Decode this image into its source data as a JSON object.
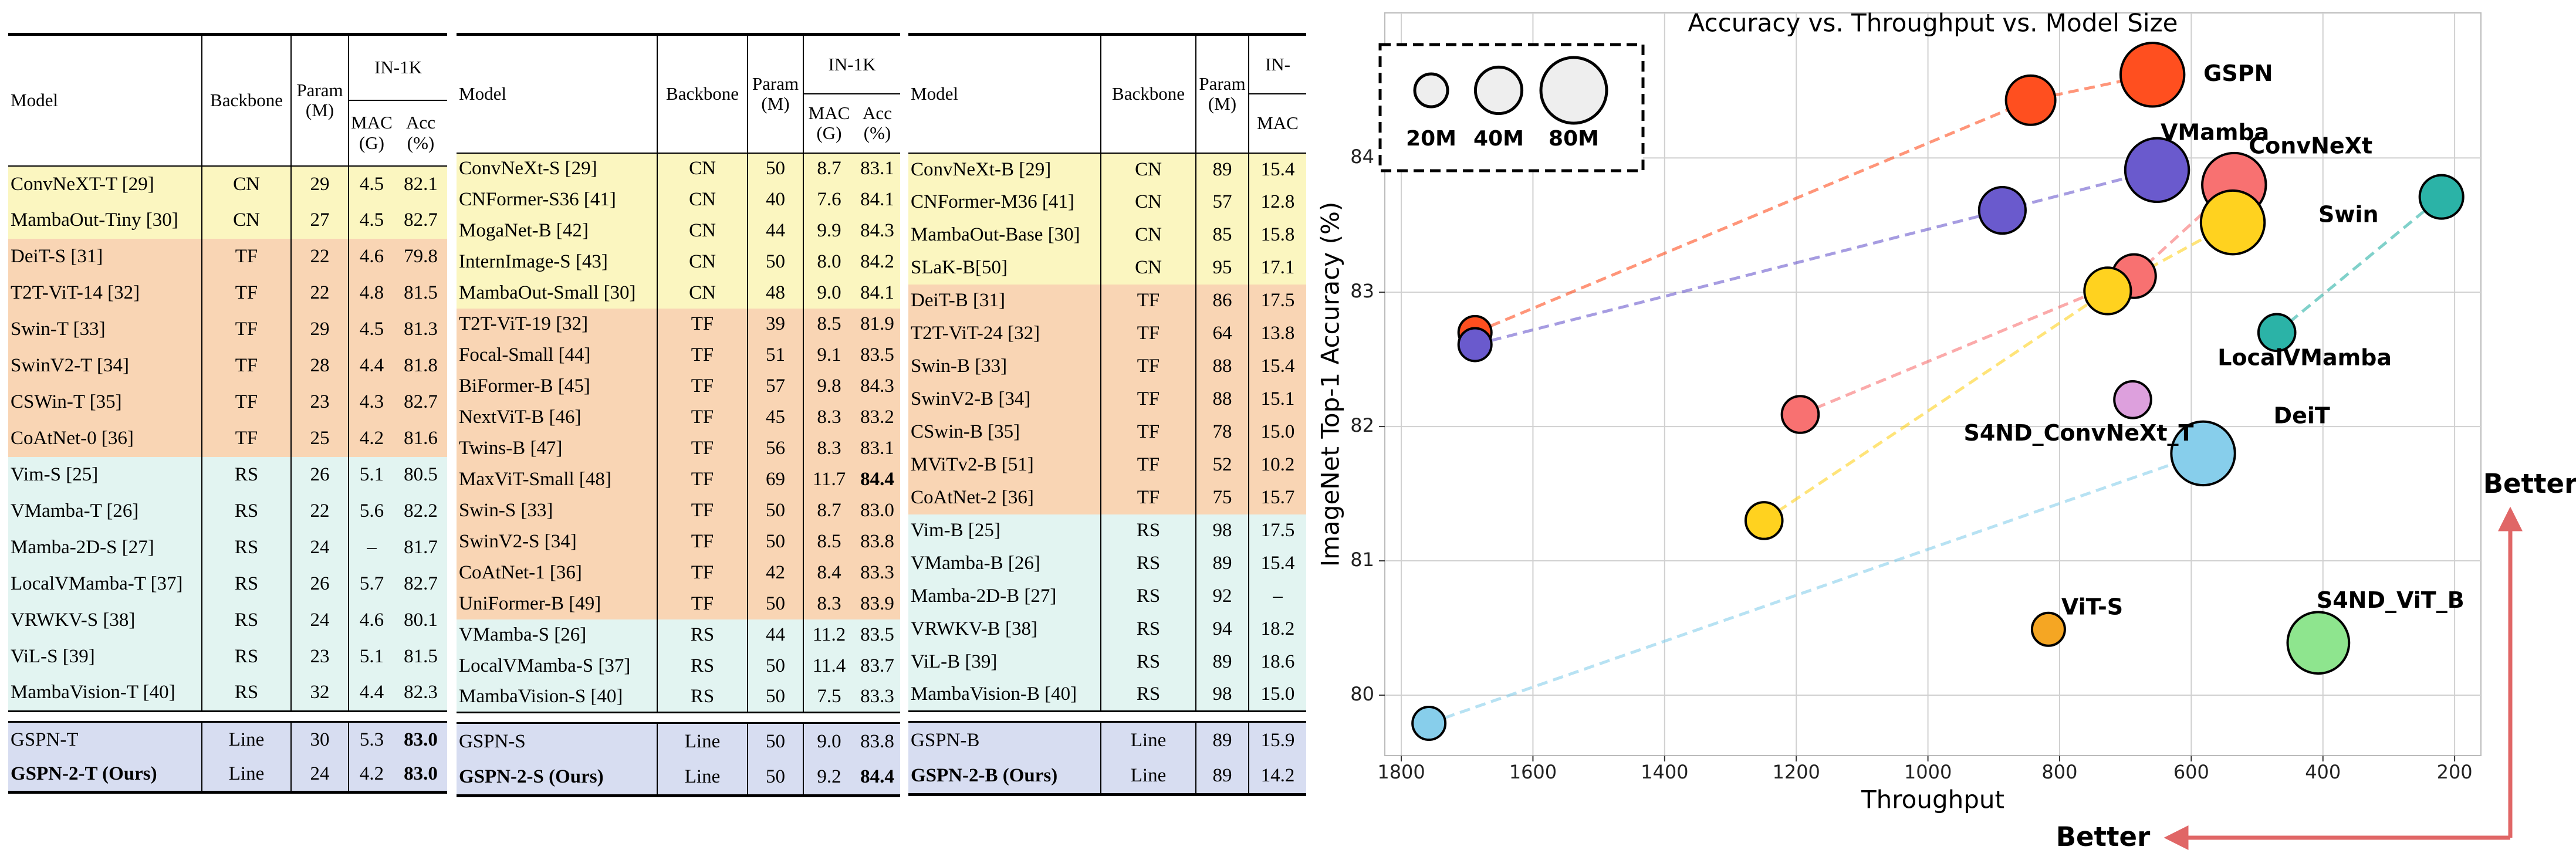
{
  "tables": [
    {
      "columns": [
        "Model",
        "Backbone",
        "Param (M)"
      ],
      "group_header": "IN-1K",
      "sub_columns": [
        "MAC (G)",
        "Acc (%)"
      ],
      "groups": [
        {
          "color": "#fbf6c0",
          "rows": [
            [
              "ConvNeXT-T [29]",
              "CN",
              "29",
              "4.5",
              "82.1"
            ],
            [
              "MambaOut-Tiny [30]",
              "CN",
              "27",
              "4.5",
              "82.7"
            ]
          ]
        },
        {
          "color": "#f9d5b4",
          "rows": [
            [
              "DeiT-S [31]",
              "TF",
              "22",
              "4.6",
              "79.8"
            ],
            [
              "T2T-ViT-14 [32]",
              "TF",
              "22",
              "4.8",
              "81.5"
            ],
            [
              "Swin-T [33]",
              "TF",
              "29",
              "4.5",
              "81.3"
            ],
            [
              "SwinV2-T [34]",
              "TF",
              "28",
              "4.4",
              "81.8"
            ],
            [
              "CSWin-T [35]",
              "TF",
              "23",
              "4.3",
              "82.7"
            ],
            [
              "CoAtNet-0 [36]",
              "TF",
              "25",
              "4.2",
              "81.6"
            ]
          ]
        },
        {
          "color": "#e2f4f1",
          "rows": [
            [
              "Vim-S [25]",
              "RS",
              "26",
              "5.1",
              "80.5"
            ],
            [
              "VMamba-T [26]",
              "RS",
              "22",
              "5.6",
              "82.2"
            ],
            [
              "Mamba-2D-S [27]",
              "RS",
              "24",
              "–",
              "81.7"
            ],
            [
              "LocalVMamba-T [37]",
              "RS",
              "26",
              "5.7",
              "82.7"
            ],
            [
              "VRWKV-S [38]",
              "RS",
              "24",
              "4.6",
              "80.1"
            ],
            [
              "ViL-S [39]",
              "RS",
              "23",
              "5.1",
              "81.5"
            ],
            [
              "MambaVision-T [40]",
              "RS",
              "32",
              "4.4",
              "82.3"
            ]
          ]
        },
        {
          "color": "#d7ddf1",
          "rows": [
            [
              "GSPN-T",
              "Line",
              "30",
              "5.3",
              "83.0"
            ],
            [
              "GSPN-2-T (Ours)",
              "Line",
              "24",
              "4.2",
              "83.0"
            ]
          ],
          "bold": [
            [
              0,
              4
            ],
            [
              1,
              0
            ],
            [
              1,
              4
            ]
          ]
        }
      ]
    },
    {
      "columns": [
        "Model",
        "Backbone",
        "Param (M)"
      ],
      "group_header": "IN-1K",
      "sub_columns": [
        "MAC (G)",
        "Acc (%)"
      ],
      "groups": [
        {
          "color": "#fbf6c0",
          "rows": [
            [
              "ConvNeXt-S [29]",
              "CN",
              "50",
              "8.7",
              "83.1"
            ],
            [
              "CNFormer-S36 [41]",
              "CN",
              "40",
              "7.6",
              "84.1"
            ],
            [
              "MogaNet-B [42]",
              "CN",
              "44",
              "9.9",
              "84.3"
            ],
            [
              "InternImage-S [43]",
              "CN",
              "50",
              "8.0",
              "84.2"
            ],
            [
              "MambaOut-Small [30]",
              "CN",
              "48",
              "9.0",
              "84.1"
            ]
          ]
        },
        {
          "color": "#f9d5b4",
          "rows": [
            [
              "T2T-ViT-19 [32]",
              "TF",
              "39",
              "8.5",
              "81.9"
            ],
            [
              "Focal-Small [44]",
              "TF",
              "51",
              "9.1",
              "83.5"
            ],
            [
              "BiFormer-B [45]",
              "TF",
              "57",
              "9.8",
              "84.3"
            ],
            [
              "NextViT-B [46]",
              "TF",
              "45",
              "8.3",
              "83.2"
            ],
            [
              "Twins-B [47]",
              "TF",
              "56",
              "8.3",
              "83.1"
            ],
            [
              "MaxViT-Small [48]",
              "TF",
              "69",
              "11.7",
              "84.4"
            ],
            [
              "Swin-S [33]",
              "TF",
              "50",
              "8.7",
              "83.0"
            ],
            [
              "SwinV2-S [34]",
              "TF",
              "50",
              "8.5",
              "83.8"
            ],
            [
              "CoAtNet-1 [36]",
              "TF",
              "42",
              "8.4",
              "83.3"
            ],
            [
              "UniFormer-B [49]",
              "TF",
              "50",
              "8.3",
              "83.9"
            ]
          ],
          "bold": [
            [
              5,
              4
            ]
          ]
        },
        {
          "color": "#e2f4f1",
          "rows": [
            [
              "VMamba-S [26]",
              "RS",
              "44",
              "11.2",
              "83.5"
            ],
            [
              "LocalVMamba-S [37]",
              "RS",
              "50",
              "11.4",
              "83.7"
            ],
            [
              "MambaVision-S [40]",
              "RS",
              "50",
              "7.5",
              "83.3"
            ]
          ]
        },
        {
          "color": "#d7ddf1",
          "rows": [
            [
              "GSPN-S",
              "Line",
              "50",
              "9.0",
              "83.8"
            ],
            [
              "GSPN-2-S (Ours)",
              "Line",
              "50",
              "9.2",
              "84.4"
            ]
          ],
          "bold": [
            [
              1,
              0
            ],
            [
              1,
              4
            ]
          ]
        }
      ]
    },
    {
      "columns": [
        "Model",
        "Backbone",
        "Param (M)"
      ],
      "group_header": "IN-",
      "sub_columns": [
        "MAC"
      ],
      "groups": [
        {
          "color": "#fbf6c0",
          "rows": [
            [
              "ConvNeXt-B [29]",
              "CN",
              "89",
              "15.4"
            ],
            [
              "CNFormer-M36 [41]",
              "CN",
              "57",
              "12.8"
            ],
            [
              "MambaOut-Base [30]",
              "CN",
              "85",
              "15.8"
            ],
            [
              "SLaK-B[50]",
              "CN",
              "95",
              "17.1"
            ]
          ]
        },
        {
          "color": "#f9d5b4",
          "rows": [
            [
              "DeiT-B [31]",
              "TF",
              "86",
              "17.5"
            ],
            [
              "T2T-ViT-24 [32]",
              "TF",
              "64",
              "13.8"
            ],
            [
              "Swin-B [33]",
              "TF",
              "88",
              "15.4"
            ],
            [
              "SwinV2-B [34]",
              "TF",
              "88",
              "15.1"
            ],
            [
              "CSwin-B [35]",
              "TF",
              "78",
              "15.0"
            ],
            [
              "MViTv2-B [51]",
              "TF",
              "52",
              "10.2"
            ],
            [
              "CoAtNet-2 [36]",
              "TF",
              "75",
              "15.7"
            ]
          ]
        },
        {
          "color": "#e2f4f1",
          "rows": [
            [
              "Vim-B [25]",
              "RS",
              "98",
              "17.5"
            ],
            [
              "VMamba-B [26]",
              "RS",
              "89",
              "15.4"
            ],
            [
              "Mamba-2D-B [27]",
              "RS",
              "92",
              "–"
            ],
            [
              "VRWKV-B [38]",
              "RS",
              "94",
              "18.2"
            ],
            [
              "ViL-B [39]",
              "RS",
              "89",
              "18.6"
            ],
            [
              "MambaVision-B [40]",
              "RS",
              "98",
              "15.0"
            ]
          ]
        },
        {
          "color": "#d7ddf1",
          "rows": [
            [
              "GSPN-B",
              "Line",
              "89",
              "15.9"
            ],
            [
              "GSPN-2-B (Ours)",
              "Line",
              "89",
              "14.2"
            ]
          ],
          "bold": [
            [
              1,
              0
            ]
          ]
        }
      ]
    }
  ],
  "chart_data": {
    "type": "scatter",
    "title": "Accuracy vs. Throughput vs. Model Size",
    "x_label": "Throughput",
    "y_label": "ImageNet Top-1 Accuracy (%)",
    "xlim": [
      1825,
      160
    ],
    "xticks": [
      1800,
      1600,
      1400,
      1200,
      1000,
      800,
      600,
      400,
      200
    ],
    "ylim": [
      79.55,
      85.08
    ],
    "yticks": [
      80,
      81,
      82,
      83,
      84
    ],
    "grid": true,
    "series": [
      {
        "name": "GSPN",
        "color": "#ff4f1f",
        "x": [
          1688,
          844,
          659
        ],
        "values": [
          82.7,
          84.43,
          84.62
        ],
        "sizes": [
          20,
          45,
          75
        ]
      },
      {
        "name": "VMamba",
        "color": "#6a5acd",
        "x": [
          1688,
          887,
          652
        ],
        "values": [
          82.61,
          83.61,
          83.91
        ],
        "sizes": [
          20,
          40,
          75
        ]
      },
      {
        "name": "ConvNeXt",
        "color": "#f87171",
        "x": [
          1194,
          687,
          535
        ],
        "values": [
          82.09,
          83.12,
          83.8
        ],
        "sizes": [
          25,
          35,
          75
        ]
      },
      {
        "name": "Swin",
        "color": "#ffd21f",
        "x": [
          1249,
          727,
          537
        ],
        "values": [
          81.3,
          83.01,
          83.52
        ],
        "sizes": [
          25,
          40,
          75
        ]
      },
      {
        "name": "LocalVMamba",
        "color": "#2bb3a7",
        "x": [
          470,
          220
        ],
        "values": [
          82.7,
          83.71
        ],
        "sizes": [
          25,
          35
        ]
      },
      {
        "name": "DeiT",
        "color": "#87ceeb",
        "x": [
          1758,
          582
        ],
        "values": [
          79.79,
          81.8
        ],
        "sizes": [
          20,
          75
        ]
      },
      {
        "name": "S4ND_ConvNeXt_T",
        "color": "#dda0dd",
        "x": [
          689
        ],
        "values": [
          82.2
        ],
        "sizes": [
          25
        ]
      },
      {
        "name": "ViT-S",
        "color": "#f5a623",
        "x": [
          817
        ],
        "values": [
          80.49
        ],
        "sizes": [
          20
        ]
      },
      {
        "name": "S4ND_ViT_B",
        "color": "#8ee58e",
        "x": [
          407
        ],
        "values": [
          80.39
        ],
        "sizes": [
          70
        ]
      }
    ],
    "size_legend": [
      {
        "value": 20,
        "label": "20M"
      },
      {
        "value": 40,
        "label": "40M"
      },
      {
        "value": 80,
        "label": "80M"
      }
    ],
    "size_legend_loc": "upper left",
    "annotations": [
      "Better",
      "Better"
    ],
    "arrow_color": "#e06666"
  }
}
